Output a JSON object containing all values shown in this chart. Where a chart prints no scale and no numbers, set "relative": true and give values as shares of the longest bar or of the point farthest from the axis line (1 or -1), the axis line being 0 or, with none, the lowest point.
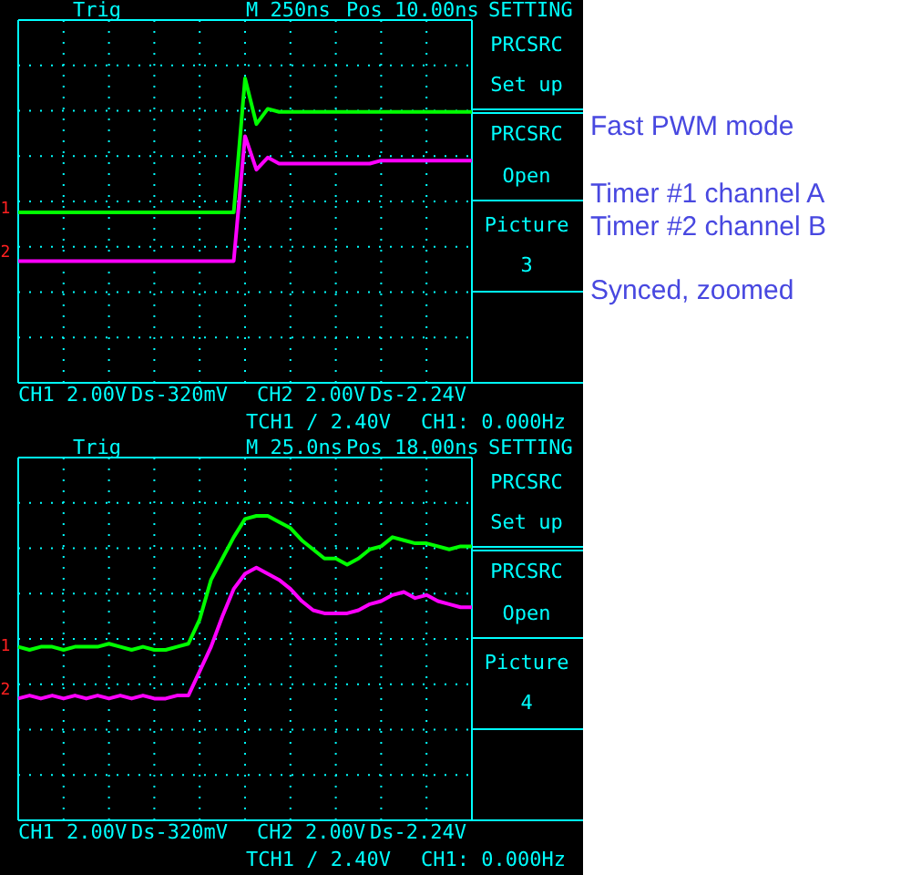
{
  "chart_data": [
    {
      "type": "line",
      "relative": true,
      "grid": true,
      "categories": [
        null,
        null,
        null,
        null,
        null,
        null,
        null,
        null,
        null,
        null,
        null,
        null,
        null,
        null,
        null,
        null,
        null,
        null,
        null,
        null,
        null,
        null,
        null,
        null,
        null,
        null,
        null,
        null,
        null,
        null,
        null,
        null,
        null,
        null,
        null,
        null,
        null,
        null,
        null,
        null,
        null
      ],
      "series": [
        {
          "color": "#00ff00",
          "values": [
            0.56,
            0.56,
            0.56,
            0.56,
            0.56,
            0.56,
            0.56,
            0.56,
            0.56,
            0.56,
            0.56,
            0.56,
            0.56,
            0.56,
            0.56,
            0.56,
            0.56,
            0.56,
            0.56,
            0.56,
            1.0,
            0.85,
            0.9,
            0.89,
            0.89,
            0.89,
            0.89,
            0.89,
            0.89,
            0.89,
            0.89,
            0.89,
            0.89,
            0.89,
            0.89,
            0.89,
            0.89,
            0.89,
            0.89,
            0.89,
            0.89
          ]
        },
        {
          "color": "#ff00ff",
          "values": [
            0.4,
            0.4,
            0.4,
            0.4,
            0.4,
            0.4,
            0.4,
            0.4,
            0.4,
            0.4,
            0.4,
            0.4,
            0.4,
            0.4,
            0.4,
            0.4,
            0.4,
            0.4,
            0.4,
            0.4,
            0.81,
            0.7,
            0.74,
            0.72,
            0.72,
            0.72,
            0.72,
            0.72,
            0.72,
            0.72,
            0.72,
            0.72,
            0.73,
            0.73,
            0.73,
            0.73,
            0.73,
            0.73,
            0.73,
            0.73,
            0.73
          ]
        }
      ],
      "annotations": [
        "Trig",
        "M 250ns",
        "Pos 10.00ns",
        "SETTING",
        "PRCSRC",
        "Set up",
        "PRCSRC",
        "Open",
        "Picture",
        "3",
        "CH1 2.00V",
        "Ds-320mV",
        "CH2 2.00V",
        "Ds-2.24V",
        "TCH1 / 2.40V",
        "CH1: 0.000Hz",
        "1",
        "2",
        "Fast PWM mode",
        "Timer #1 channel A",
        "Timer #2 channel B",
        "Synced, zoomed"
      ]
    },
    {
      "type": "line",
      "relative": true,
      "grid": true,
      "categories": [
        null,
        null,
        null,
        null,
        null,
        null,
        null,
        null,
        null,
        null,
        null,
        null,
        null,
        null,
        null,
        null,
        null,
        null,
        null,
        null,
        null,
        null,
        null,
        null,
        null,
        null,
        null,
        null,
        null,
        null,
        null,
        null,
        null,
        null,
        null,
        null,
        null,
        null,
        null,
        null,
        null
      ],
      "series": [
        {
          "color": "#00ff00",
          "values": [
            0.57,
            0.56,
            0.57,
            0.57,
            0.56,
            0.57,
            0.57,
            0.57,
            0.58,
            0.57,
            0.56,
            0.57,
            0.56,
            0.56,
            0.57,
            0.58,
            0.66,
            0.79,
            0.86,
            0.93,
            0.99,
            1.0,
            1.0,
            0.98,
            0.96,
            0.92,
            0.89,
            0.86,
            0.86,
            0.84,
            0.86,
            0.89,
            0.9,
            0.93,
            0.92,
            0.91,
            0.91,
            0.9,
            0.89,
            0.9,
            0.9
          ]
        },
        {
          "color": "#ff00ff",
          "values": [
            0.4,
            0.41,
            0.4,
            0.41,
            0.4,
            0.41,
            0.4,
            0.41,
            0.4,
            0.41,
            0.4,
            0.41,
            0.4,
            0.4,
            0.41,
            0.41,
            0.49,
            0.57,
            0.67,
            0.76,
            0.81,
            0.83,
            0.81,
            0.79,
            0.76,
            0.72,
            0.69,
            0.68,
            0.68,
            0.68,
            0.69,
            0.71,
            0.72,
            0.74,
            0.75,
            0.73,
            0.74,
            0.72,
            0.71,
            0.7,
            0.7
          ]
        }
      ],
      "annotations": [
        "Trig",
        "M 25.0ns",
        "Pos 18.00ns",
        "SETTING",
        "PRCSRC",
        "Set up",
        "PRCSRC",
        "Open",
        "Picture",
        "4",
        "CH1 2.00V",
        "Ds-320mV",
        "CH2 2.00V",
        "Ds-2.24V",
        "TCH1 / 2.40V",
        "CH1: 0.000Hz",
        "1",
        "2"
      ]
    }
  ]
}
